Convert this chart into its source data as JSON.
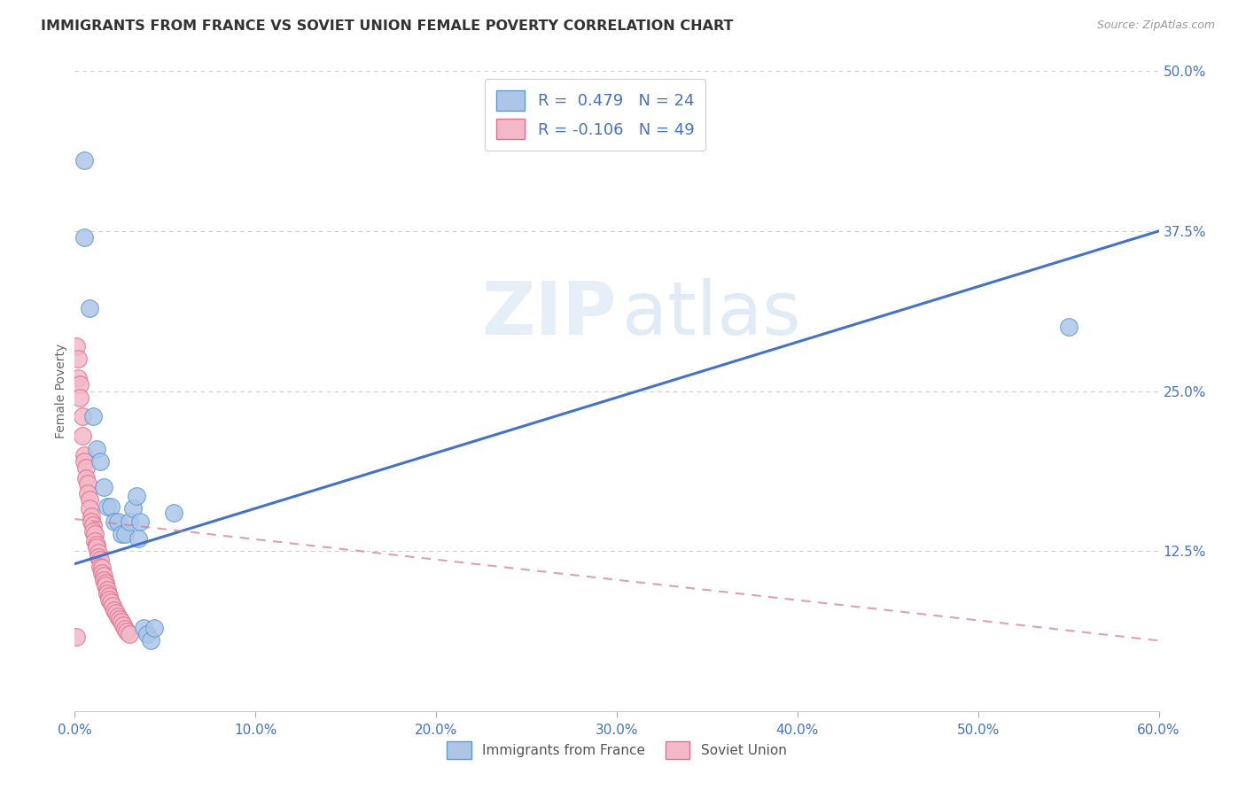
{
  "title": "IMMIGRANTS FROM FRANCE VS SOVIET UNION FEMALE POVERTY CORRELATION CHART",
  "source": "Source: ZipAtlas.com",
  "xlabel_ticks": [
    "0.0%",
    "10.0%",
    "20.0%",
    "30.0%",
    "40.0%",
    "50.0%",
    "60.0%"
  ],
  "xlabel_values": [
    0.0,
    0.1,
    0.2,
    0.3,
    0.4,
    0.5,
    0.6
  ],
  "ylabel": "Female Poverty",
  "xlim": [
    0.0,
    0.6
  ],
  "ylim": [
    0.0,
    0.5
  ],
  "france_color": "#adc6e8",
  "france_edge_color": "#5b9bd5",
  "soviet_color": "#f4b8c8",
  "soviet_edge_color": "#e07090",
  "france_line_color": "#4472c4",
  "soviet_line_color": "#d48090",
  "background_color": "#ffffff",
  "grid_color": "#cccccc",
  "france_scatter_x": [
    0.005,
    0.005,
    0.008,
    0.01,
    0.012,
    0.014,
    0.016,
    0.018,
    0.02,
    0.022,
    0.024,
    0.026,
    0.028,
    0.03,
    0.032,
    0.034,
    0.036,
    0.038,
    0.04,
    0.042,
    0.044,
    0.55,
    0.035,
    0.055
  ],
  "france_scatter_y": [
    0.43,
    0.37,
    0.315,
    0.23,
    0.205,
    0.195,
    0.175,
    0.16,
    0.16,
    0.148,
    0.148,
    0.138,
    0.138,
    0.148,
    0.158,
    0.168,
    0.148,
    0.065,
    0.06,
    0.055,
    0.065,
    0.3,
    0.135,
    0.155
  ],
  "soviet_scatter_x": [
    0.001,
    0.002,
    0.002,
    0.003,
    0.003,
    0.004,
    0.004,
    0.005,
    0.005,
    0.006,
    0.006,
    0.007,
    0.007,
    0.008,
    0.008,
    0.009,
    0.009,
    0.01,
    0.01,
    0.011,
    0.011,
    0.012,
    0.012,
    0.013,
    0.013,
    0.014,
    0.014,
    0.015,
    0.015,
    0.016,
    0.016,
    0.017,
    0.017,
    0.018,
    0.018,
    0.019,
    0.019,
    0.02,
    0.021,
    0.022,
    0.023,
    0.024,
    0.025,
    0.026,
    0.027,
    0.028,
    0.029,
    0.03,
    0.001
  ],
  "soviet_scatter_y": [
    0.285,
    0.275,
    0.26,
    0.255,
    0.245,
    0.23,
    0.215,
    0.2,
    0.195,
    0.19,
    0.182,
    0.178,
    0.17,
    0.165,
    0.158,
    0.152,
    0.148,
    0.145,
    0.14,
    0.138,
    0.133,
    0.13,
    0.128,
    0.124,
    0.12,
    0.118,
    0.113,
    0.112,
    0.108,
    0.106,
    0.102,
    0.1,
    0.098,
    0.095,
    0.092,
    0.09,
    0.087,
    0.085,
    0.082,
    0.079,
    0.077,
    0.074,
    0.072,
    0.07,
    0.067,
    0.064,
    0.062,
    0.06,
    0.058
  ],
  "france_line_x0": 0.0,
  "france_line_y0": 0.115,
  "france_line_x1": 0.6,
  "france_line_y1": 0.375,
  "soviet_line_x0": 0.0,
  "soviet_line_y0": 0.15,
  "soviet_line_x1": 0.6,
  "soviet_line_y1": 0.055
}
